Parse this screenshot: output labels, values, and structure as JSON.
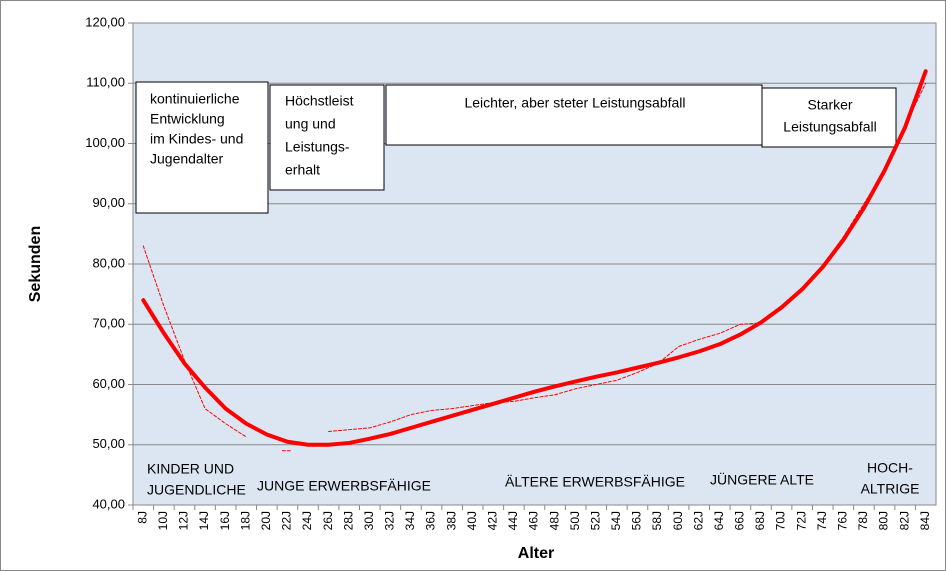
{
  "chart_data": {
    "type": "line",
    "x_label": "Alter",
    "y_label": "Sekunden",
    "categories": [
      "8J",
      "10J",
      "12J",
      "14J",
      "16J",
      "18J",
      "20J",
      "22J",
      "24J",
      "26J",
      "28J",
      "30J",
      "32J",
      "34J",
      "36J",
      "38J",
      "40J",
      "42J",
      "44J",
      "46J",
      "48J",
      "50J",
      "52J",
      "54J",
      "56J",
      "58J",
      "60J",
      "62J",
      "64J",
      "66J",
      "68J",
      "70J",
      "72J",
      "74J",
      "76J",
      "78J",
      "80J",
      "82J",
      "84J"
    ],
    "series": [
      {
        "color": "#ff0000",
        "dashed": false,
        "values": [
          74,
          68.5,
          63.5,
          59.5,
          56,
          53.5,
          51.7,
          50.5,
          50,
          50,
          50.3,
          51,
          51.8,
          52.8,
          53.8,
          54.8,
          55.8,
          56.8,
          57.8,
          58.8,
          59.7,
          60.5,
          61.3,
          62,
          62.8,
          63.6,
          64.5,
          65.5,
          66.7,
          68.3,
          70.3,
          72.8,
          75.8,
          79.5,
          84,
          89.3,
          95.5,
          102.7,
          112
        ]
      },
      {
        "color": "#ff0000",
        "dashed": true,
        "values": [
          83,
          73,
          64,
          56,
          53.5,
          51.3,
          null,
          49,
          null,
          52.2,
          52.5,
          52.8,
          53.8,
          55,
          55.7,
          56,
          56.5,
          57,
          57.2,
          57.8,
          58.3,
          59.3,
          60,
          60.7,
          62,
          63.5,
          66.3,
          67.5,
          68.5,
          70,
          70.2,
          72.5,
          75.5,
          79.8,
          84.5,
          90,
          95.5,
          103,
          110
        ]
      }
    ],
    "ylim": [
      40,
      120
    ],
    "yticks": [
      {
        "value": 40,
        "label": "40,00"
      },
      {
        "value": 50,
        "label": "50,00"
      },
      {
        "value": 60,
        "label": "60,00"
      },
      {
        "value": 70,
        "label": "70,00"
      },
      {
        "value": 80,
        "label": "80,00"
      },
      {
        "value": 90,
        "label": "90,00"
      },
      {
        "value": 100,
        "label": "100,00"
      },
      {
        "value": 110,
        "label": "110,00"
      },
      {
        "value": 120,
        "label": "120,00"
      }
    ],
    "grid": true,
    "plot_background": "#dce6f2",
    "annotations": [
      {
        "lines": [
          "kontinuierliche",
          "Entwicklung",
          "im Kindes- und",
          "Jugendalter"
        ]
      },
      {
        "lines": [
          "Höchstleist",
          "ung und",
          "Leistungs-",
          "erhalt"
        ]
      },
      {
        "lines": [
          "Leichter, aber steter Leistungsabfall"
        ]
      },
      {
        "lines": [
          "Starker",
          "Leistungsabfall"
        ]
      }
    ],
    "phase_labels": [
      {
        "lines": [
          "KINDER UND",
          "JUGENDLICHE"
        ]
      },
      {
        "lines": [
          "JUNGE  ERWERBSFÄHIGE"
        ]
      },
      {
        "lines": [
          "ÄLTERE  ERWERBSFÄHIGE"
        ]
      },
      {
        "lines": [
          "JÜNGERE ALTE"
        ]
      },
      {
        "lines": [
          "HOCH-",
          "ALTRIGE"
        ]
      }
    ]
  }
}
